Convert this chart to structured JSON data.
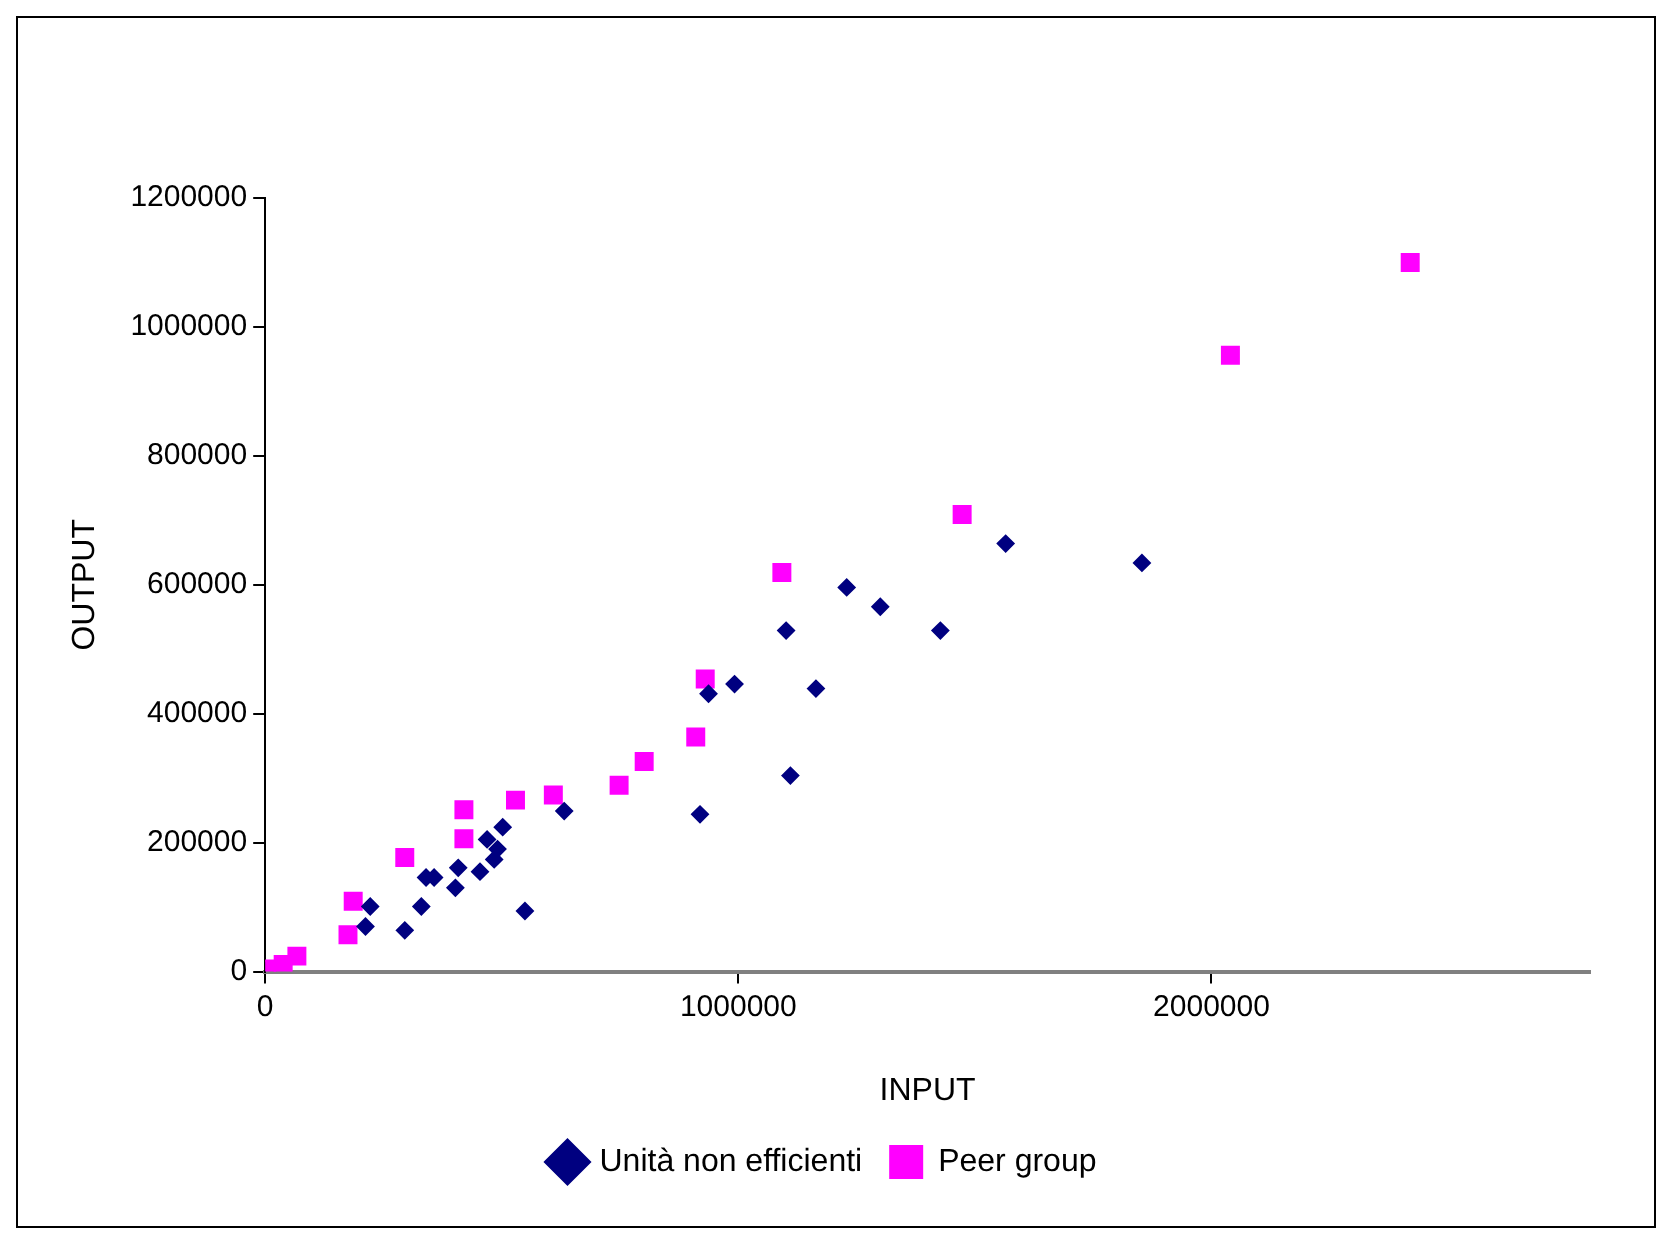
{
  "chart_data": {
    "type": "scatter",
    "xlabel": "INPUT",
    "ylabel": "OUTPUT",
    "xlim": [
      0,
      2800000
    ],
    "xticks": [
      0,
      1000000,
      2000000
    ],
    "ylim": [
      0,
      1200000
    ],
    "yticks": [
      0,
      200000,
      400000,
      600000,
      800000,
      1000000,
      1200000
    ],
    "grid": false,
    "legend": "bottom",
    "series": [
      {
        "name": "Unità non efficienti",
        "color": "#000080",
        "marker": "diamond",
        "x": [
          1853000,
          1565000,
          1229000,
          1300000,
          1427000,
          1101000,
          992000,
          937000,
          1164000,
          1110000,
          919000,
          632000,
          549000,
          502000,
          491000,
          469000,
          454000,
          484000,
          408000,
          402000,
          357000,
          340000,
          330000,
          295000,
          222000,
          212000
        ],
        "values": [
          634000,
          664000,
          596000,
          566000,
          529000,
          529000,
          446000,
          431000,
          439000,
          304000,
          244000,
          249000,
          94000,
          224000,
          190000,
          205000,
          155000,
          174000,
          161000,
          130000,
          146000,
          146000,
          101000,
          64000,
          101000,
          70000
        ]
      },
      {
        "name": "Peer group",
        "color": "#ff00ff",
        "marker": "square",
        "x": [
          2420000,
          2040000,
          1473000,
          1092000,
          930000,
          910000,
          801000,
          748000,
          609000,
          529000,
          420000,
          420000,
          295000,
          186000,
          175000,
          67000,
          38000,
          3000
        ],
        "values": [
          1100000,
          956000,
          709000,
          619000,
          454000,
          364000,
          326000,
          289000,
          274000,
          266000,
          251000,
          206000,
          177000,
          109000,
          57000,
          24000,
          11000,
          4000
        ]
      }
    ]
  }
}
